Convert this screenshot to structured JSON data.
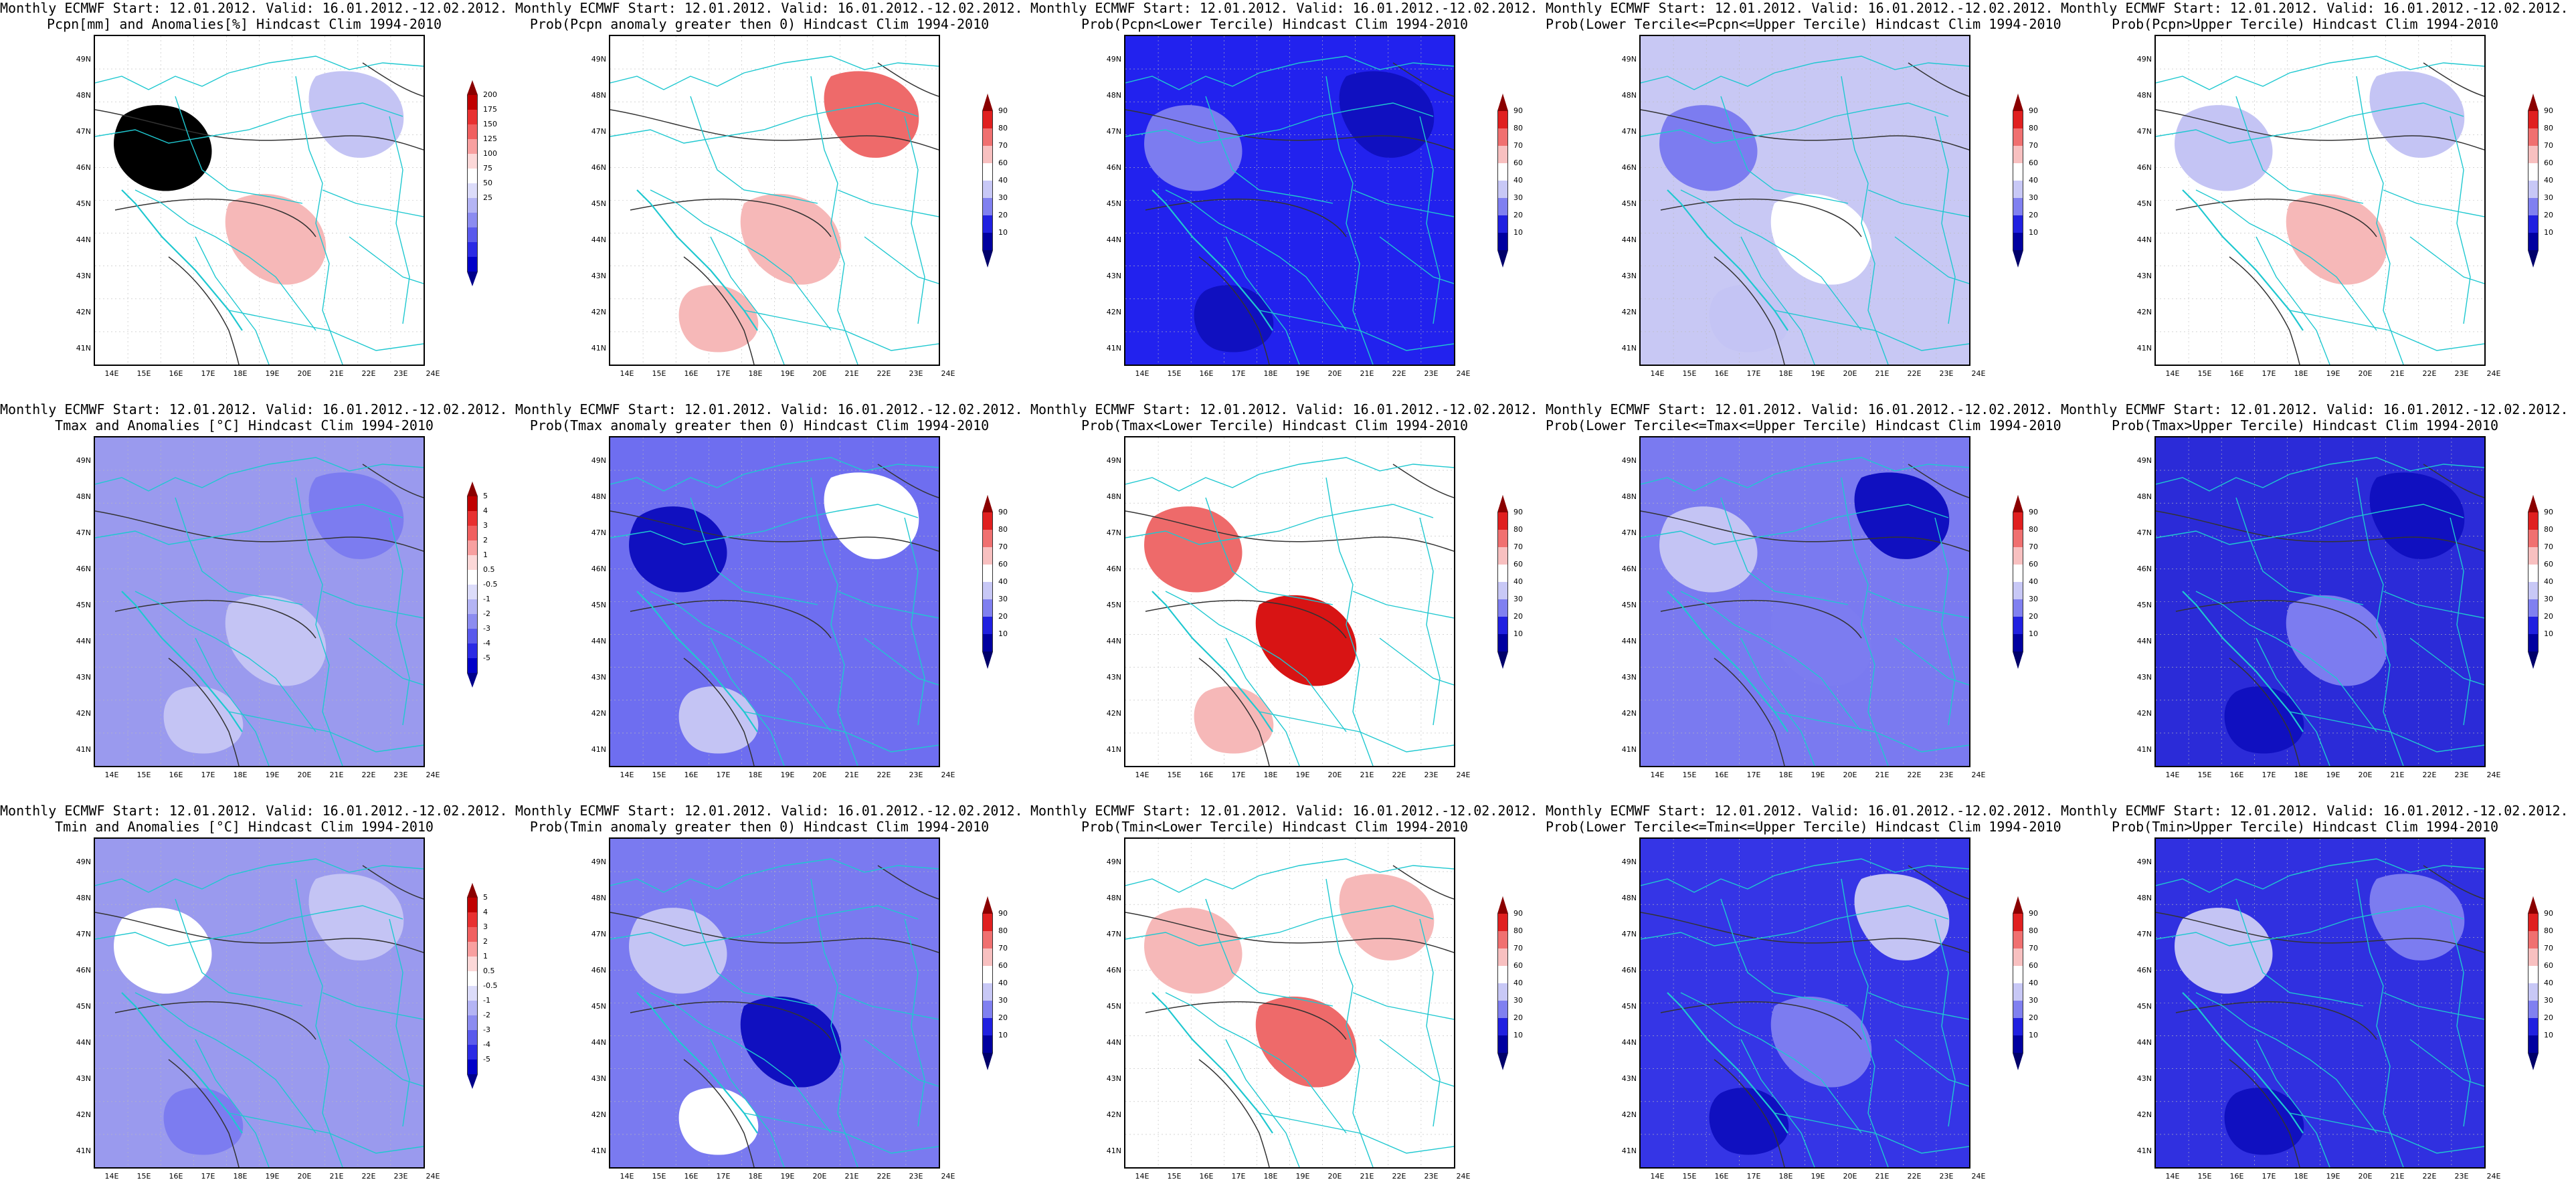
{
  "header": {
    "line1": "Monthly ECMWF Start: 12.01.2012. Valid: 16.01.2012.-12.02.2012."
  },
  "axes": {
    "lat_labels": [
      "49N",
      "48N",
      "47N",
      "46N",
      "45N",
      "44N",
      "43N",
      "42N",
      "41N"
    ],
    "lon_labels": [
      "14E",
      "15E",
      "16E",
      "17E",
      "18E",
      "19E",
      "20E",
      "21E",
      "22E",
      "23E",
      "24E"
    ]
  },
  "panels": [
    {
      "row": 0,
      "col": 0,
      "subtitle": "Pcpn[mm] and Anomalies[%] Hindcast Clim 1994-2010",
      "type": "anom",
      "base": "#ffffff",
      "blobs": [
        "sr",
        "lr",
        "lb"
      ],
      "cbar": [
        "200",
        "175",
        "150",
        "125",
        "100",
        "75",
        "50",
        "25"
      ]
    },
    {
      "row": 0,
      "col": 1,
      "subtitle": "Prob(Pcpn anomaly greater then 0) Hindcast Clim 1994-2010",
      "type": "prob",
      "base": "#ffffff",
      "blobs": [
        "lr",
        "mr",
        "lr"
      ],
      "cbar": [
        "90",
        "80",
        "70",
        "60",
        "40",
        "30",
        "20",
        "10"
      ]
    },
    {
      "row": 0,
      "col": 2,
      "subtitle": "Prob(Pcpn<Lower Tercile) Hindcast Clim 1994-2010",
      "type": "prob",
      "base": "#2222ee",
      "blobs": [
        "db",
        "db",
        "mb"
      ],
      "cbar": [
        "90",
        "80",
        "70",
        "60",
        "40",
        "30",
        "20",
        "10"
      ]
    },
    {
      "row": 0,
      "col": 3,
      "subtitle": "Prob(Lower Tercile<=Pcpn<=Upper Tercile) Hindcast Clim 1994-2010",
      "type": "prob",
      "base": "#c8c8f4",
      "blobs": [
        "lb",
        "mb",
        "wh"
      ],
      "cbar": [
        "90",
        "80",
        "70",
        "60",
        "40",
        "30",
        "20",
        "10"
      ]
    },
    {
      "row": 0,
      "col": 4,
      "subtitle": "Prob(Pcpn>Upper Tercile) Hindcast Clim 1994-2010",
      "type": "prob",
      "base": "#ffffff",
      "blobs": [
        "lb",
        "lr",
        "lb"
      ],
      "cbar": [
        "90",
        "80",
        "70",
        "60",
        "40",
        "30",
        "20",
        "10"
      ]
    },
    {
      "row": 1,
      "col": 0,
      "subtitle": "Tmax and Anomalies [°C] Hindcast Clim 1994-2010",
      "type": "anom",
      "base": "#9a9aee",
      "blobs": [
        "lb",
        "mb",
        "lb"
      ],
      "cbar": [
        "5",
        "4",
        "3",
        "2",
        "1",
        "0.5",
        "-0.5",
        "-1",
        "-2",
        "-3",
        "-4",
        "-5"
      ]
    },
    {
      "row": 1,
      "col": 1,
      "subtitle": "Prob(Tmax anomaly greater then 0) Hindcast Clim 1994-2010",
      "type": "prob",
      "base": "#6e6ef0",
      "blobs": [
        "wh",
        "lb",
        "db"
      ],
      "cbar": [
        "90",
        "80",
        "70",
        "60",
        "40",
        "30",
        "20",
        "10"
      ]
    },
    {
      "row": 1,
      "col": 2,
      "subtitle": "Prob(Tmax<Lower Tercile) Hindcast Clim 1994-2010",
      "type": "prob",
      "base": "#ffffff",
      "blobs": [
        "lr",
        "mr",
        "dr"
      ],
      "cbar": [
        "90",
        "80",
        "70",
        "60",
        "40",
        "30",
        "20",
        "10"
      ]
    },
    {
      "row": 1,
      "col": 3,
      "subtitle": "Prob(Lower Tercile<=Tmax<=Upper Tercile) Hindcast Clim 1994-2010",
      "type": "prob",
      "base": "#7a7af0",
      "blobs": [
        "lb",
        "mb",
        "db"
      ],
      "cbar": [
        "90",
        "80",
        "70",
        "60",
        "40",
        "30",
        "20",
        "10"
      ]
    },
    {
      "row": 1,
      "col": 4,
      "subtitle": "Prob(Tmax>Upper Tercile) Hindcast Clim 1994-2010",
      "type": "prob",
      "base": "#2b2bd8",
      "blobs": [
        "mb",
        "db",
        "db"
      ],
      "cbar": [
        "90",
        "80",
        "70",
        "60",
        "40",
        "30",
        "20",
        "10"
      ]
    },
    {
      "row": 2,
      "col": 0,
      "subtitle": "Tmin and Anomalies [°C] Hindcast Clim 1994-2010",
      "type": "anom",
      "base": "#9a9aee",
      "blobs": [
        "lb",
        "mb",
        "wh"
      ],
      "cbar": [
        "5",
        "4",
        "3",
        "2",
        "1",
        "0.5",
        "-0.5",
        "-1",
        "-2",
        "-3",
        "-4",
        "-5"
      ]
    },
    {
      "row": 2,
      "col": 1,
      "subtitle": "Prob(Tmin anomaly greater then 0) Hindcast Clim 1994-2010",
      "type": "prob",
      "base": "#7a7af0",
      "blobs": [
        "wh",
        "lb",
        "db"
      ],
      "cbar": [
        "90",
        "80",
        "70",
        "60",
        "40",
        "30",
        "20",
        "10"
      ]
    },
    {
      "row": 2,
      "col": 2,
      "subtitle": "Prob(Tmin<Lower Tercile) Hindcast Clim 1994-2010",
      "type": "prob",
      "base": "#ffffff",
      "blobs": [
        "lr",
        "mr",
        "lr"
      ],
      "cbar": [
        "90",
        "80",
        "70",
        "60",
        "40",
        "30",
        "20",
        "10"
      ]
    },
    {
      "row": 2,
      "col": 3,
      "subtitle": "Prob(Lower Tercile<=Tmin<=Upper Tercile) Hindcast Clim 1994-2010",
      "type": "prob",
      "base": "#3535e6",
      "blobs": [
        "mb",
        "lb",
        "db"
      ],
      "cbar": [
        "90",
        "80",
        "70",
        "60",
        "40",
        "30",
        "20",
        "10"
      ]
    },
    {
      "row": 2,
      "col": 4,
      "subtitle": "Prob(Tmin>Upper Tercile) Hindcast Clim 1994-2010",
      "type": "prob",
      "base": "#3030e0",
      "blobs": [
        "mb",
        "db",
        "lb"
      ],
      "cbar": [
        "90",
        "80",
        "70",
        "60",
        "40",
        "30",
        "20",
        "10"
      ]
    }
  ],
  "palette": {
    "wh": "#ffffff",
    "lr": "#f6b8b8",
    "mr": "#ee6a6a",
    "dr": "#d81414",
    "lb": "#c4c4f4",
    "mb": "#7c7cf0",
    "db": "#1010c0",
    "prob_bar": [
      "#8a0000",
      "#e02020",
      "#f07070",
      "#f8c0c0",
      "#ffffff",
      "#c8c8f6",
      "#8080f0",
      "#2020e0",
      "#0000a0",
      "#00006a"
    ],
    "anom_bar": [
      "#8a0000",
      "#c00000",
      "#e83030",
      "#f06060",
      "#f8a0a0",
      "#fcd8d8",
      "#ffffff",
      "#dcdcfa",
      "#b4b4f4",
      "#8c8cf0",
      "#5a5aec",
      "#2a2ae4",
      "#0000c8",
      "#00008a"
    ],
    "border": "#1fc8d0",
    "contour": "#333333"
  }
}
